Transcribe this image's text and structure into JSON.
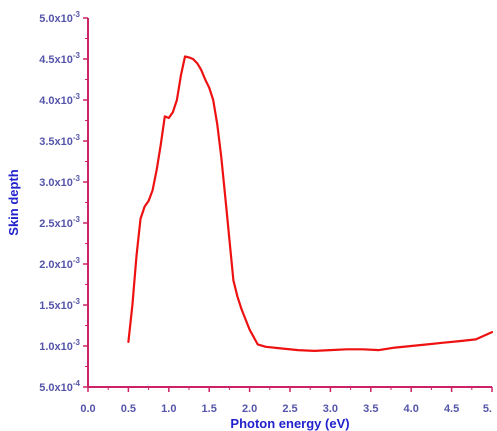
{
  "colors": {
    "axis": "#cc2266",
    "tick_text": "#5555aa",
    "title_text": "#2222cc",
    "series": "#ee1111"
  },
  "chart_data": {
    "type": "line",
    "title": "",
    "xlabel": "Photon energy (eV)",
    "ylabel": "Skin depth",
    "xlim": [
      0.0,
      5.0
    ],
    "ylim": [
      0.0005,
      0.005
    ],
    "grid": false,
    "legend": "none",
    "x_ticks": [
      0.0,
      0.5,
      1.0,
      1.5,
      2.0,
      2.5,
      3.0,
      3.5,
      4.0,
      4.5,
      5.0
    ],
    "x_tick_labels": [
      "0.0",
      "0.5",
      "1.0",
      "1.5",
      "2.0",
      "2.5",
      "3.0",
      "3.5",
      "4.0",
      "4.5",
      "5."
    ],
    "y_ticks": [
      0.0005,
      0.001,
      0.0015,
      0.002,
      0.0025,
      0.003,
      0.0035,
      0.004,
      0.0045,
      0.005
    ],
    "y_tick_labels": [
      {
        "mantissa": "5.0x10",
        "exp": "-4"
      },
      {
        "mantissa": "1.0x10",
        "exp": "-3"
      },
      {
        "mantissa": "1.5x10",
        "exp": "-3"
      },
      {
        "mantissa": "2.0x10",
        "exp": "-3"
      },
      {
        "mantissa": "2.5x10",
        "exp": "-3"
      },
      {
        "mantissa": "3.0x10",
        "exp": "-3"
      },
      {
        "mantissa": "3.5x10",
        "exp": "-3"
      },
      {
        "mantissa": "4.0x10",
        "exp": "-3"
      },
      {
        "mantissa": "4.5x10",
        "exp": "-3"
      },
      {
        "mantissa": "5.0x10",
        "exp": "-3"
      }
    ],
    "series": [
      {
        "x": [
          0.5,
          0.55,
          0.6,
          0.65,
          0.7,
          0.75,
          0.8,
          0.85,
          0.9,
          0.95,
          1.0,
          1.05,
          1.1,
          1.15,
          1.2,
          1.25,
          1.3,
          1.35,
          1.4,
          1.45,
          1.5,
          1.55,
          1.6,
          1.65,
          1.7,
          1.75,
          1.8,
          1.85,
          1.9,
          2.0,
          2.1,
          2.2,
          2.4,
          2.6,
          2.8,
          3.0,
          3.2,
          3.4,
          3.6,
          3.8,
          4.0,
          4.2,
          4.4,
          4.6,
          4.8,
          5.0
        ],
        "y": [
          0.00105,
          0.0015,
          0.0021,
          0.00255,
          0.0027,
          0.00277,
          0.0029,
          0.00315,
          0.00345,
          0.0038,
          0.00378,
          0.00385,
          0.004,
          0.0043,
          0.00453,
          0.00452,
          0.0045,
          0.00445,
          0.00437,
          0.00425,
          0.00415,
          0.004,
          0.0037,
          0.0033,
          0.0028,
          0.0023,
          0.0018,
          0.0016,
          0.00145,
          0.0012,
          0.00102,
          0.00099,
          0.00097,
          0.00095,
          0.00094,
          0.00095,
          0.00096,
          0.00096,
          0.00095,
          0.00098,
          0.001,
          0.00102,
          0.00104,
          0.00106,
          0.00108,
          0.00117
        ]
      }
    ]
  }
}
